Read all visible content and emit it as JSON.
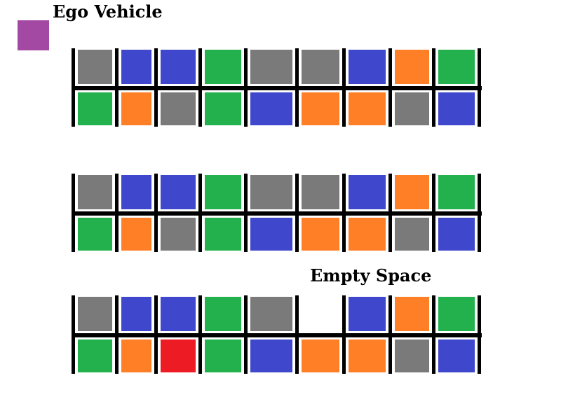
{
  "labels": {
    "ego_vehicle": "Ego Vehicle",
    "empty_space": "Empty Space"
  },
  "colors": {
    "gray": "#7a7a7a",
    "blue": "#3f48cc",
    "green": "#22b14c",
    "orange": "#ff7f27",
    "red": "#ed1c24",
    "purple": "#a349a4",
    "line": "#000000"
  },
  "ego_vehicle": {
    "color": "purple"
  },
  "lots": [
    {
      "top_row": [
        "gray",
        "blue",
        "blue",
        "green",
        "gray",
        "gray",
        "blue",
        "orange",
        "green"
      ],
      "bottom_row": [
        "green",
        "orange",
        "gray",
        "green",
        "blue",
        "orange",
        "orange",
        "gray",
        "blue"
      ]
    },
    {
      "top_row": [
        "gray",
        "blue",
        "blue",
        "green",
        "gray",
        "gray",
        "blue",
        "orange",
        "green"
      ],
      "bottom_row": [
        "green",
        "orange",
        "gray",
        "green",
        "blue",
        "orange",
        "orange",
        "gray",
        "blue"
      ]
    },
    {
      "top_row": [
        "gray",
        "blue",
        "blue",
        "green",
        "gray",
        "empty",
        "blue",
        "orange",
        "green"
      ],
      "bottom_row": [
        "green",
        "orange",
        "red",
        "green",
        "blue",
        "orange",
        "orange",
        "gray",
        "blue"
      ]
    }
  ]
}
